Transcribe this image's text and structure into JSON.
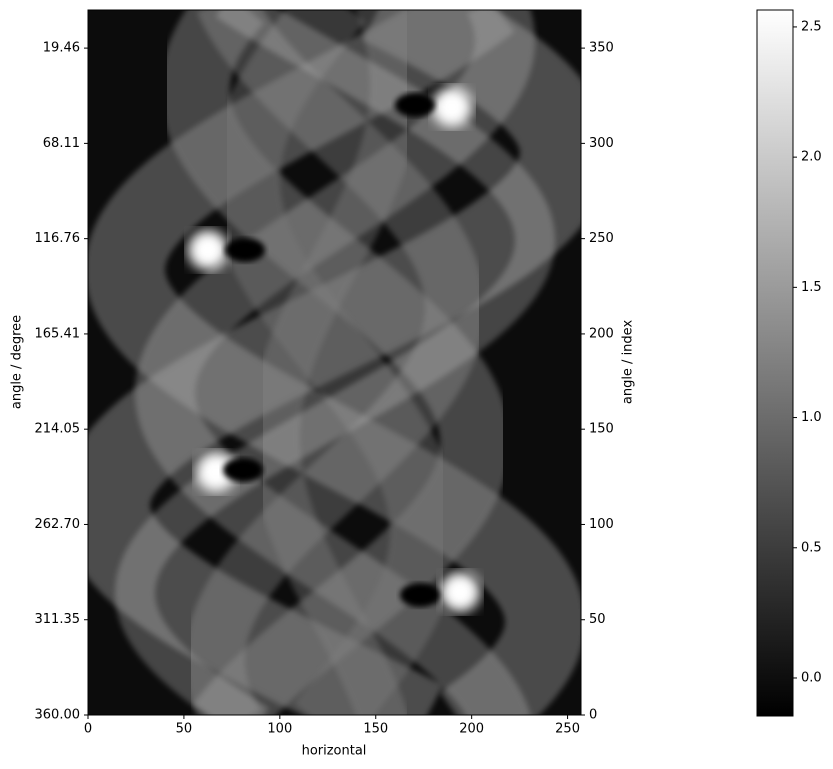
{
  "chart_data": {
    "type": "image",
    "xlabel": "horizontal",
    "ylabel": "angle / degree",
    "y2label": "angle / index",
    "xlim": [
      0,
      257
    ],
    "xticks": [
      0,
      50,
      100,
      150,
      200,
      250
    ],
    "ylim": [
      360,
      0
    ],
    "yticks": [
      19.46,
      68.11,
      {
        "value": 116.76,
        "label": "116.76"
      },
      165.41,
      214.05,
      {
        "value": 262.7,
        "label": "262.70"
      },
      311.35,
      {
        "value": 360,
        "label": "360.00"
      }
    ],
    "y2lim": [
      0,
      370
    ],
    "y2ticks": [
      0,
      50,
      100,
      150,
      200,
      250,
      300,
      350
    ],
    "clim": [
      -0.146,
      2.565
    ],
    "cticks": [
      {
        "value": 0,
        "label": "0.0"
      },
      0.5,
      {
        "value": 1,
        "label": "1.0"
      },
      1.5,
      {
        "value": 2,
        "label": "2.0"
      },
      2.5
    ]
  }
}
